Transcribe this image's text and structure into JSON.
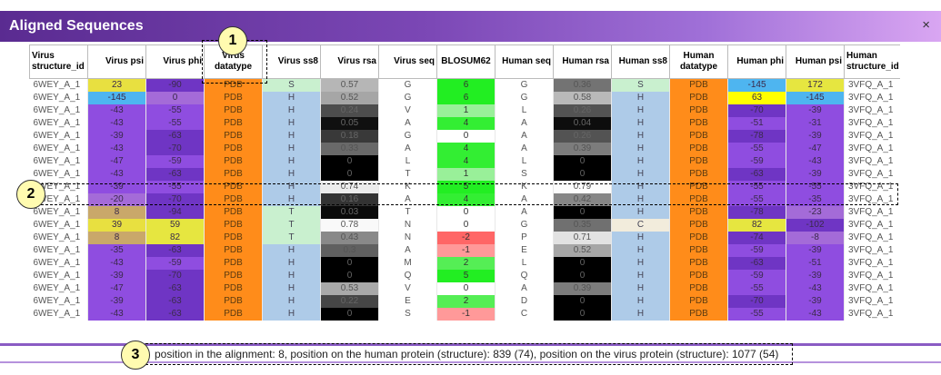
{
  "dialog": {
    "title": "Aligned Sequences",
    "close_glyph": "×",
    "close_icon": "close-icon"
  },
  "columns": [
    {
      "key": "v_sid",
      "label": "Virus structure_id",
      "align": "left"
    },
    {
      "key": "v_psi",
      "label": "Virus psi",
      "align": "right"
    },
    {
      "key": "v_phi",
      "label": "Virus phi",
      "align": "right"
    },
    {
      "key": "v_dt",
      "label": "Virus datatype",
      "align": "center"
    },
    {
      "key": "v_ss8",
      "label": "Virus ss8",
      "align": "right"
    },
    {
      "key": "v_rsa",
      "label": "Virus rsa",
      "align": "right"
    },
    {
      "key": "v_seq",
      "label": "Virus seq",
      "align": "right"
    },
    {
      "key": "blosum",
      "label": "BLOSUM62",
      "align": "center"
    },
    {
      "key": "h_seq",
      "label": "Human seq",
      "align": "right"
    },
    {
      "key": "h_rsa",
      "label": "Human rsa",
      "align": "right"
    },
    {
      "key": "h_ss8",
      "label": "Human ss8",
      "align": "right"
    },
    {
      "key": "h_dt",
      "label": "Human datatype",
      "align": "center"
    },
    {
      "key": "h_phi",
      "label": "Human phi",
      "align": "right"
    },
    {
      "key": "h_psi",
      "label": "Human psi",
      "align": "right"
    },
    {
      "key": "h_sid",
      "label": "Human structure_id",
      "align": "left"
    }
  ],
  "rows": [
    [
      "6WEY_A_1",
      "23",
      "-90",
      "PDB",
      "S",
      "0.57",
      "G",
      "6",
      "G",
      "0.36",
      "S",
      "PDB",
      "-145",
      "172",
      "3VFQ_A_1"
    ],
    [
      "6WEY_A_1",
      "-145",
      "0",
      "PDB",
      "H",
      "0.52",
      "G",
      "6",
      "G",
      "0.58",
      "H",
      "PDB",
      "63",
      "-145",
      "3VFQ_A_1"
    ],
    [
      "6WEY_A_1",
      "-43",
      "-55",
      "PDB",
      "H",
      "0.24",
      "V",
      "1",
      "L",
      "0.26",
      "H",
      "PDB",
      "-70",
      "-39",
      "3VFQ_A_1"
    ],
    [
      "6WEY_A_1",
      "-43",
      "-55",
      "PDB",
      "H",
      "0.05",
      "A",
      "4",
      "A",
      "0.04",
      "H",
      "PDB",
      "-51",
      "-31",
      "3VFQ_A_1"
    ],
    [
      "6WEY_A_1",
      "-39",
      "-63",
      "PDB",
      "H",
      "0.18",
      "G",
      "0",
      "A",
      "0.26",
      "H",
      "PDB",
      "-78",
      "-39",
      "3VFQ_A_1"
    ],
    [
      "6WEY_A_1",
      "-43",
      "-70",
      "PDB",
      "H",
      "0.33",
      "A",
      "4",
      "A",
      "0.39",
      "H",
      "PDB",
      "-55",
      "-47",
      "3VFQ_A_1"
    ],
    [
      "6WEY_A_1",
      "-47",
      "-59",
      "PDB",
      "H",
      "0",
      "L",
      "4",
      "L",
      "0",
      "H",
      "PDB",
      "-59",
      "-43",
      "3VFQ_A_1"
    ],
    [
      "6WEY_A_1",
      "-43",
      "-63",
      "PDB",
      "H",
      "0",
      "T",
      "1",
      "S",
      "0",
      "H",
      "PDB",
      "-63",
      "-39",
      "3VFQ_A_1"
    ],
    [
      "6WEY_A_1",
      "-39",
      "-55",
      "PDB",
      "H",
      "0.74",
      "K",
      "5",
      "K",
      "0.79",
      "H",
      "PDB",
      "-55",
      "-55",
      "3VFQ_A_1"
    ],
    [
      "6WEY_A_1",
      "-20",
      "-70",
      "PDB",
      "H",
      "0.16",
      "A",
      "4",
      "A",
      "0.42",
      "H",
      "PDB",
      "-55",
      "-35",
      "3VFQ_A_1"
    ],
    [
      "6WEY_A_1",
      "8",
      "-94",
      "PDB",
      "T",
      "0.03",
      "T",
      "0",
      "A",
      "0",
      "H",
      "PDB",
      "-78",
      "-23",
      "3VFQ_A_1"
    ],
    [
      "6WEY_A_1",
      "39",
      "59",
      "PDB",
      "T",
      "0.78",
      "N",
      "0",
      "G",
      "0.35",
      "C",
      "PDB",
      "82",
      "-102",
      "3VFQ_A_1"
    ],
    [
      "6WEY_A_1",
      "8",
      "82",
      "PDB",
      "T",
      "0.43",
      "N",
      "-2",
      "P",
      "0.71",
      "H",
      "PDB",
      "-74",
      "-8",
      "3VFQ_A_1"
    ],
    [
      "6WEY_A_1",
      "-35",
      "-63",
      "PDB",
      "H",
      "0.3",
      "A",
      "-1",
      "E",
      "0.52",
      "H",
      "PDB",
      "-59",
      "-39",
      "3VFQ_A_1"
    ],
    [
      "6WEY_A_1",
      "-43",
      "-59",
      "PDB",
      "H",
      "0",
      "M",
      "2",
      "L",
      "0",
      "H",
      "PDB",
      "-63",
      "-51",
      "3VFQ_A_1"
    ],
    [
      "6WEY_A_1",
      "-39",
      "-70",
      "PDB",
      "H",
      "0",
      "Q",
      "5",
      "Q",
      "0",
      "H",
      "PDB",
      "-59",
      "-39",
      "3VFQ_A_1"
    ],
    [
      "6WEY_A_1",
      "-47",
      "-63",
      "PDB",
      "H",
      "0.53",
      "V",
      "0",
      "A",
      "0.39",
      "H",
      "PDB",
      "-55",
      "-43",
      "3VFQ_A_1"
    ],
    [
      "6WEY_A_1",
      "-39",
      "-63",
      "PDB",
      "H",
      "0.22",
      "E",
      "2",
      "D",
      "0",
      "H",
      "PDB",
      "-70",
      "-39",
      "3VFQ_A_1"
    ],
    [
      "6WEY_A_1",
      "-43",
      "-63",
      "PDB",
      "H",
      "0",
      "S",
      "-1",
      "C",
      "0",
      "H",
      "PDB",
      "-55",
      "-43",
      "3VFQ_A_1"
    ]
  ],
  "status": {
    "text": "position in the alignment: 8, position on the human protein (structure): 839 (74), position on the virus protein (structure): 1077 (54)"
  },
  "callouts": {
    "c1": "1",
    "c2": "2",
    "c3": "3"
  },
  "colors": {
    "title_gradient_start": "#5a2b91",
    "title_gradient_end": "#d9a6f2",
    "datatype_orange": "#ff8c1a",
    "ss8_helix_blue": "#aecbe8",
    "ss8_bend_green": "#c9f0cf",
    "ss8_coil": "#f2ecdc",
    "angle_purple": "#8f4de0",
    "angle_dark_purple": "#6f35c4",
    "angle_positive_yellow": "#e6e640",
    "angle_strong_yellow": "#ffff00",
    "angle_blue": "#4eb5f0",
    "blosum_green": "#22ee22",
    "blosum_red": "#ff6666",
    "callout_fill": "#fffbb0"
  }
}
